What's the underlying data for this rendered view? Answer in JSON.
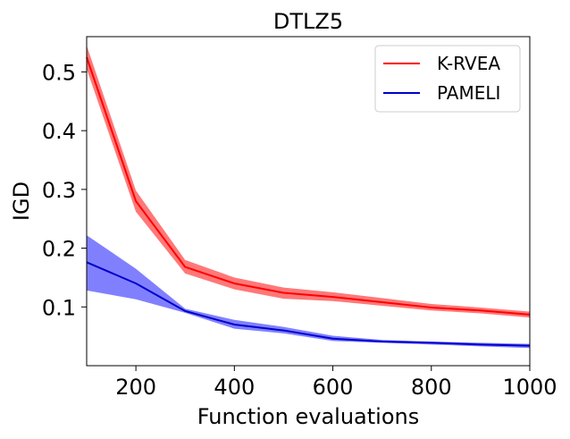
{
  "chart_data": {
    "type": "line",
    "title": "DTLZ5",
    "xlabel": "Function evaluations",
    "ylabel": "IGD",
    "xlim": [
      100,
      1000
    ],
    "ylim": [
      0.0,
      0.56
    ],
    "xticks": [
      200,
      400,
      600,
      800,
      1000
    ],
    "yticks": [
      0.1,
      0.2,
      0.3,
      0.4,
      0.5
    ],
    "legend_position": "top-right",
    "x": [
      100,
      200,
      300,
      400,
      500,
      600,
      700,
      800,
      900,
      1000
    ],
    "series": [
      {
        "name": "K-RVEA",
        "color": "#ff0000",
        "band_color": "#ff6060",
        "mean": [
          0.525,
          0.28,
          0.168,
          0.14,
          0.124,
          0.117,
          0.108,
          0.099,
          0.094,
          0.087
        ],
        "lower": [
          0.505,
          0.262,
          0.157,
          0.13,
          0.114,
          0.11,
          0.102,
          0.094,
          0.089,
          0.082
        ],
        "upper": [
          0.545,
          0.298,
          0.18,
          0.15,
          0.133,
          0.125,
          0.115,
          0.105,
          0.099,
          0.092
        ]
      },
      {
        "name": "PAMELI",
        "color": "#0000cc",
        "band_color": "#6a6aff",
        "mean": [
          0.176,
          0.14,
          0.093,
          0.07,
          0.06,
          0.046,
          0.041,
          0.039,
          0.036,
          0.034
        ],
        "lower": [
          0.128,
          0.113,
          0.09,
          0.063,
          0.055,
          0.042,
          0.039,
          0.036,
          0.033,
          0.03
        ],
        "upper": [
          0.222,
          0.165,
          0.097,
          0.078,
          0.066,
          0.051,
          0.044,
          0.041,
          0.039,
          0.037
        ]
      }
    ]
  }
}
